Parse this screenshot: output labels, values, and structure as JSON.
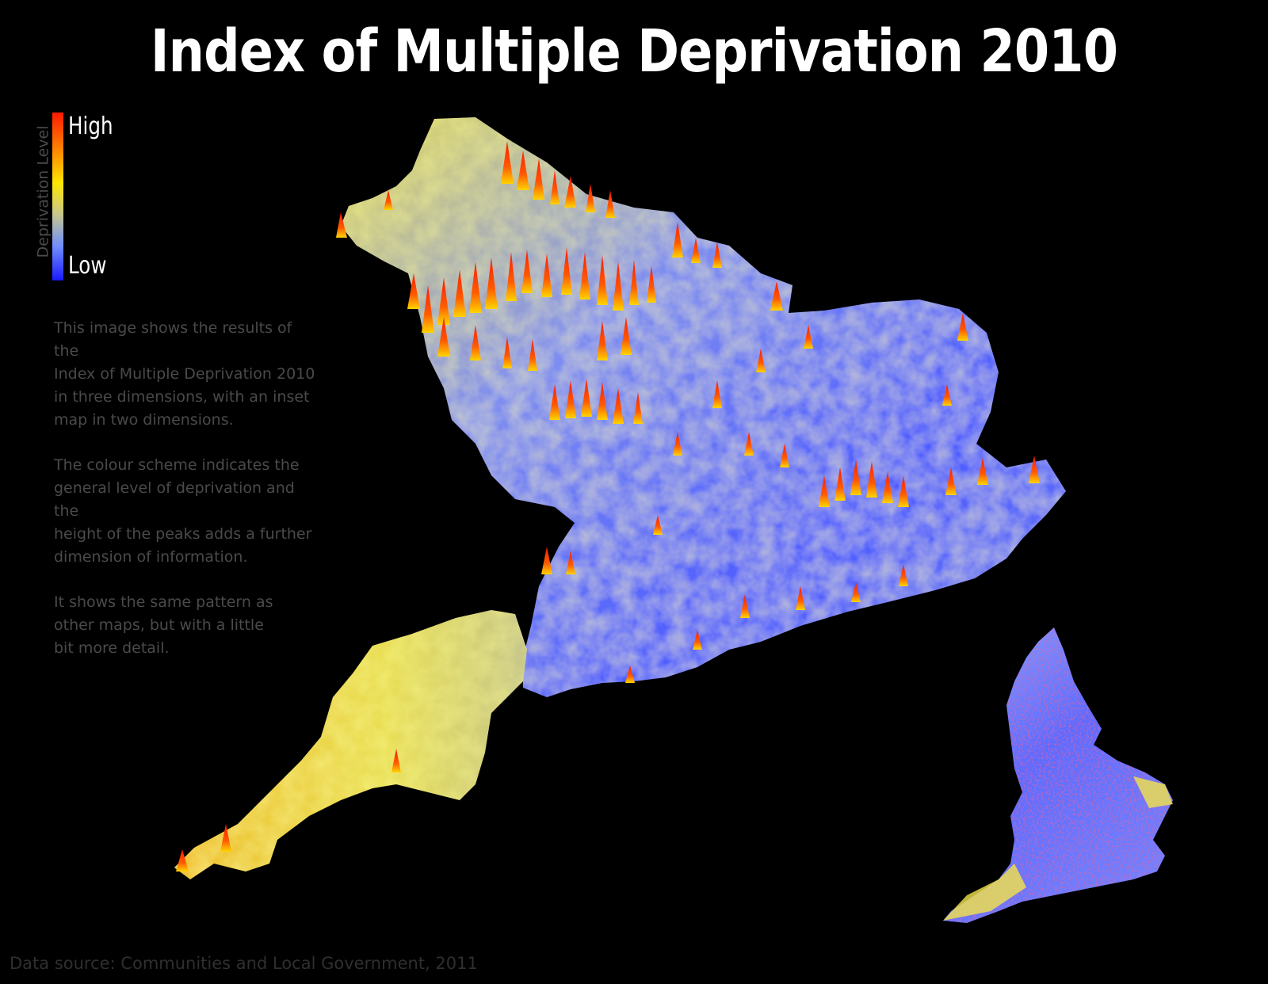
{
  "title": "Index of Multiple Deprivation 2010",
  "legend": {
    "axis_label": "Deprivation Level",
    "high_label": "High",
    "low_label": "Low",
    "colors": [
      "#ff1a00",
      "#ff7a00",
      "#ffe600",
      "#c9c98a",
      "#6f8cff",
      "#1a1aff"
    ]
  },
  "description": {
    "paragraph1": "This image shows the results of the\nIndex of Multiple Deprivation 2010\nin three dimensions, with an inset\nmap in two dimensions.",
    "paragraph2": "The colour scheme indicates the\ngeneral level of deprivation and the\nheight of the peaks adds a further\ndimension of information.",
    "paragraph3": "It shows the same pattern as\nother maps, but with a little\nbit more detail."
  },
  "source": "Data source: Communities and Local Government, 2011",
  "map": {
    "main_view": "3d-surface-england",
    "inset_view": "2d-england",
    "base_color": "#4d5cff",
    "mid_color": "#f2e34a",
    "peak_color": "#ff2a00"
  }
}
